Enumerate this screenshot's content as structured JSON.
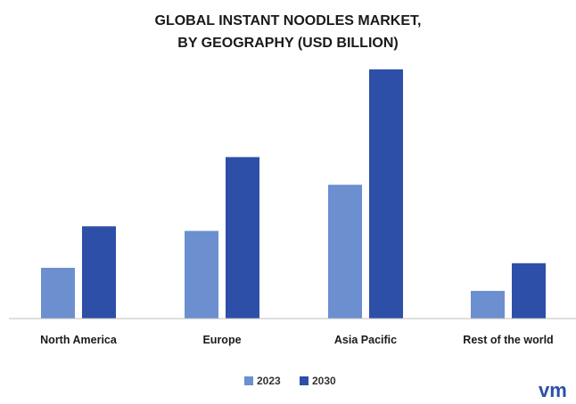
{
  "chart_data": {
    "type": "bar",
    "title_lines": [
      "GLOBAL INSTANT NOODLES MARKET,",
      "BY GEOGRAPHY (USD BILLION)"
    ],
    "categories": [
      "North America",
      "Europe",
      "Asia Pacific",
      "Rest of the world"
    ],
    "series": [
      {
        "name": "2023",
        "color": "#6b8fcf",
        "values": [
          5.5,
          9.5,
          14.5,
          3.0
        ]
      },
      {
        "name": "2030",
        "color": "#2d4fa8",
        "values": [
          10.0,
          17.5,
          27.0,
          6.0
        ]
      }
    ],
    "ylim": [
      0,
      27
    ],
    "legend_position": "bottom-center",
    "grid": false
  },
  "logo": {
    "text": "vm",
    "color": "#2d4fa8"
  }
}
